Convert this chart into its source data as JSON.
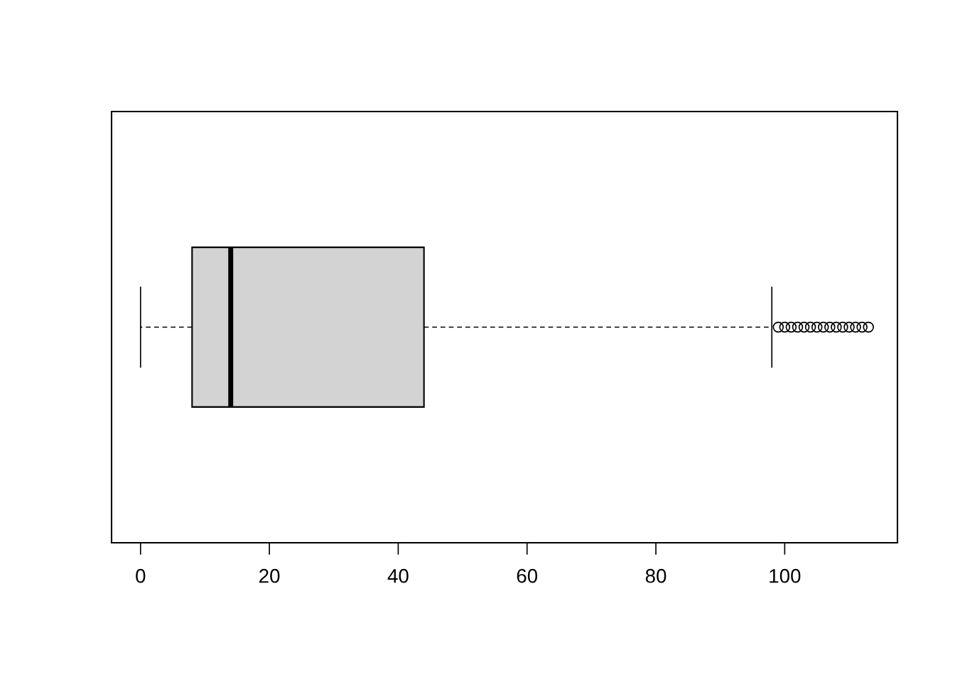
{
  "chart_data": {
    "type": "box",
    "orientation": "horizontal",
    "categories": [
      null
    ],
    "boxes": [
      {
        "low": 0,
        "q1": 8,
        "median": 14,
        "q3": 44,
        "high": 98,
        "outliers": [
          99,
          100,
          101,
          102,
          103,
          104,
          105,
          106,
          107,
          108,
          109,
          110,
          111,
          112,
          113
        ]
      }
    ],
    "color": "#d3d3d3",
    "xlim": [
      -4.5,
      117.5
    ],
    "xticks": [
      0,
      20,
      40,
      60,
      80,
      100
    ],
    "tick_labels": "x",
    "grid": false,
    "legend": false
  }
}
